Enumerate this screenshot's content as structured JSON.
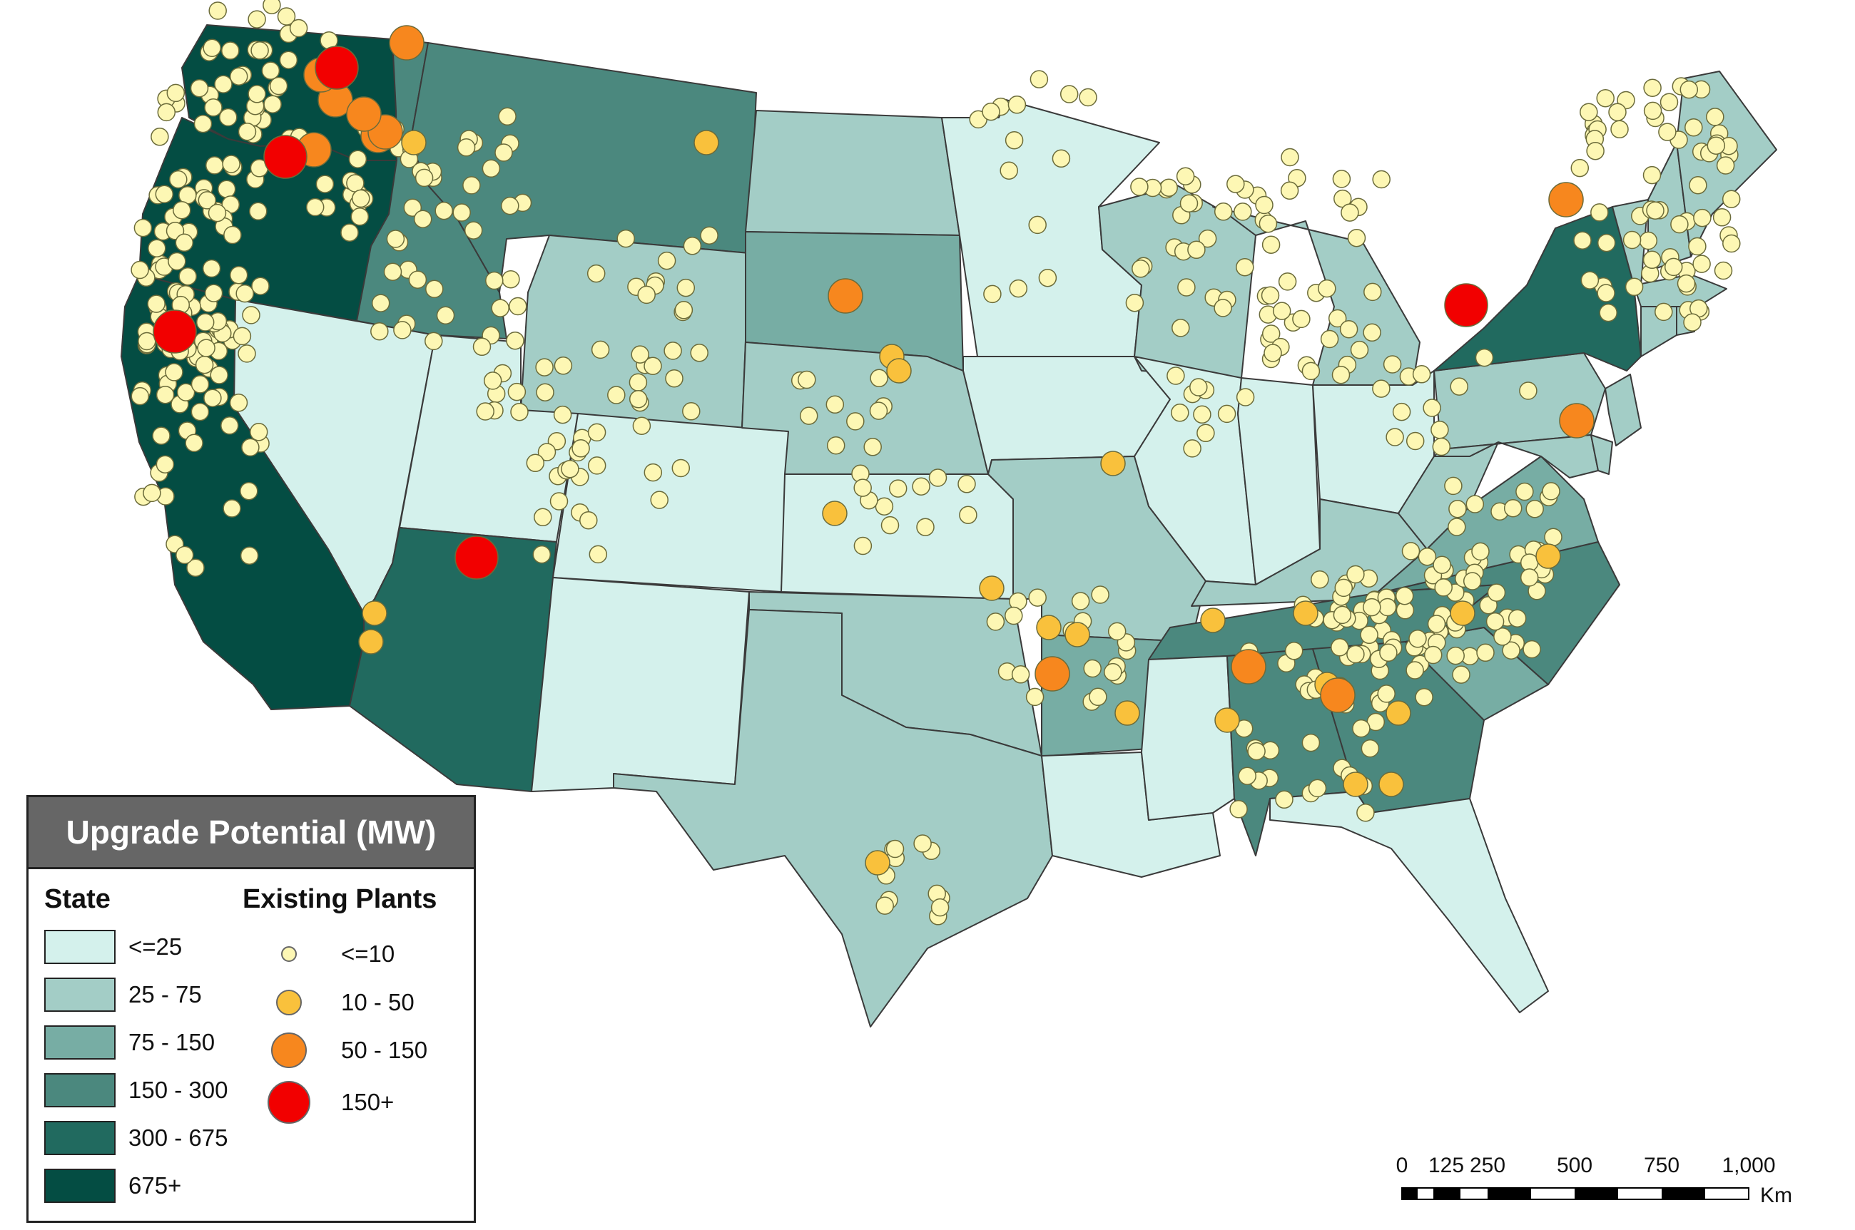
{
  "legend": {
    "title": "Upgrade Potential (MW)",
    "state_heading": "State",
    "plants_heading": "Existing Plants",
    "state_classes": [
      {
        "label": "<=25",
        "color": "#d4f1ec"
      },
      {
        "label": "25 - 75",
        "color": "#a3cdc6"
      },
      {
        "label": "75 - 150",
        "color": "#77ada4"
      },
      {
        "label": "150 - 300",
        "color": "#4b887e"
      },
      {
        "label": "300 - 675",
        "color": "#216a5f"
      },
      {
        "label": "675+",
        "color": "#044d43"
      }
    ],
    "plant_classes": [
      {
        "label": "<=10",
        "color": "#fdf7b4"
      },
      {
        "label": "10 - 50",
        "color": "#f9c13c"
      },
      {
        "label": "50 - 150",
        "color": "#f7871e"
      },
      {
        "label": "150+",
        "color": "#f20000"
      }
    ]
  },
  "scale_bar": {
    "ticks": [
      "0",
      "125",
      "250",
      "500",
      "750",
      "1,000"
    ],
    "unit": "Km"
  },
  "map": {
    "states": [
      {
        "name": "Washington",
        "class": 5
      },
      {
        "name": "Oregon",
        "class": 5
      },
      {
        "name": "California",
        "class": 5
      },
      {
        "name": "Idaho",
        "class": 3
      },
      {
        "name": "Nevada",
        "class": 0
      },
      {
        "name": "Montana",
        "class": 3
      },
      {
        "name": "Wyoming",
        "class": 1
      },
      {
        "name": "Utah",
        "class": 0
      },
      {
        "name": "Arizona",
        "class": 4
      },
      {
        "name": "Colorado",
        "class": 0
      },
      {
        "name": "New Mexico",
        "class": 0
      },
      {
        "name": "North Dakota",
        "class": 1
      },
      {
        "name": "South Dakota",
        "class": 2
      },
      {
        "name": "Nebraska",
        "class": 1
      },
      {
        "name": "Kansas",
        "class": 0
      },
      {
        "name": "Oklahoma",
        "class": 1
      },
      {
        "name": "Texas",
        "class": 1
      },
      {
        "name": "Minnesota",
        "class": 0
      },
      {
        "name": "Iowa",
        "class": 0
      },
      {
        "name": "Missouri",
        "class": 1
      },
      {
        "name": "Arkansas",
        "class": 2
      },
      {
        "name": "Louisiana",
        "class": 0
      },
      {
        "name": "Wisconsin",
        "class": 1
      },
      {
        "name": "Illinois",
        "class": 0
      },
      {
        "name": "Michigan",
        "class": 1
      },
      {
        "name": "Indiana",
        "class": 0
      },
      {
        "name": "Ohio",
        "class": 0
      },
      {
        "name": "Kentucky",
        "class": 1
      },
      {
        "name": "Tennessee",
        "class": 3
      },
      {
        "name": "Mississippi",
        "class": 0
      },
      {
        "name": "Alabama",
        "class": 3
      },
      {
        "name": "Georgia",
        "class": 3
      },
      {
        "name": "Florida",
        "class": 0
      },
      {
        "name": "South Carolina",
        "class": 2
      },
      {
        "name": "North Carolina",
        "class": 3
      },
      {
        "name": "Virginia",
        "class": 2
      },
      {
        "name": "West Virginia",
        "class": 1
      },
      {
        "name": "Pennsylvania",
        "class": 1
      },
      {
        "name": "New York",
        "class": 4
      },
      {
        "name": "Maryland",
        "class": 1
      },
      {
        "name": "Delaware",
        "class": 1
      },
      {
        "name": "New Jersey",
        "class": 1
      },
      {
        "name": "Vermont",
        "class": 1
      },
      {
        "name": "New Hampshire",
        "class": 1
      },
      {
        "name": "Maine",
        "class": 1
      },
      {
        "name": "Massachusetts",
        "class": 1
      },
      {
        "name": "Connecticut",
        "class": 1
      },
      {
        "name": "Rhode Island",
        "class": 1
      }
    ]
  }
}
